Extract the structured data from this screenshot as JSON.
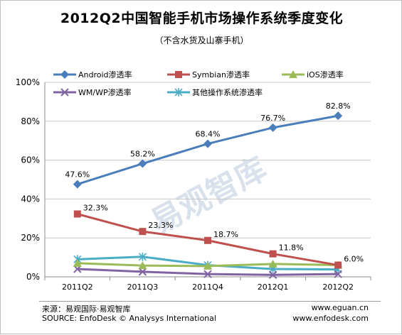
{
  "title": "2012Q2中国智能手机市场操作系统季度变化",
  "subtitle": "（不含水货及山寨手机）",
  "watermark": "易观智库",
  "footer": {
    "source_cn": "来源：易观国际·易观智库",
    "source_en": "SOURCE: EnfoDesk © Analysys International",
    "url1": "www.eguan.cn",
    "url2": "www.enfodesk.com"
  },
  "chart_data": {
    "type": "line",
    "title": "2012Q2中国智能手机市场操作系统季度变化",
    "subtitle": "（不含水货及山寨手机）",
    "categories": [
      "2011Q2",
      "2011Q3",
      "2011Q4",
      "2012Q1",
      "2012Q2"
    ],
    "ylim": [
      0,
      100
    ],
    "yticks": [
      "0%",
      "20%",
      "40%",
      "60%",
      "80%",
      "100%"
    ],
    "grid": true,
    "legend_position": "top",
    "series": [
      {
        "name": "Android渗透率",
        "values": [
          47.6,
          58.2,
          68.4,
          76.7,
          82.8
        ],
        "labels": [
          "47.6%",
          "58.2%",
          "68.4%",
          "76.7%",
          "82.8%"
        ],
        "color": "#4a7ebb",
        "marker": "diamond"
      },
      {
        "name": "Symbian渗透率",
        "values": [
          32.3,
          23.3,
          18.7,
          11.8,
          6.0
        ],
        "labels": [
          "32.3%",
          "23.3%",
          "18.7%",
          "11.8%",
          "6.0%"
        ],
        "color": "#c0504d",
        "marker": "square"
      },
      {
        "name": "iOS渗透率",
        "values": [
          7.0,
          5.8,
          5.5,
          6.6,
          6.0
        ],
        "color": "#9bbb59",
        "marker": "triangle"
      },
      {
        "name": "WM/WP渗透率",
        "values": [
          4.0,
          2.6,
          1.4,
          1.0,
          1.4
        ],
        "color": "#8064a2",
        "marker": "x"
      },
      {
        "name": "其他操作系统渗透率",
        "values": [
          9.0,
          10.3,
          6.0,
          4.0,
          3.8
        ],
        "color": "#4bacc6",
        "marker": "star"
      }
    ]
  }
}
